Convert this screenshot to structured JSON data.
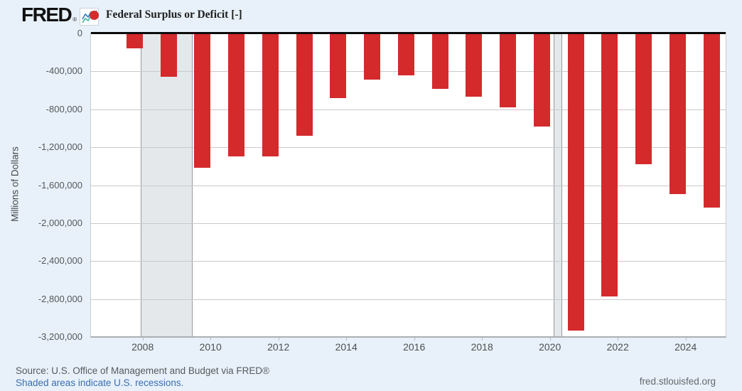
{
  "header": {
    "logo": "FRED",
    "registered": "®",
    "legend_label": "Federal Surplus or Deficit [-]"
  },
  "chart_data": {
    "type": "bar",
    "title": "Federal Surplus or Deficit [-]",
    "ylabel": "Millions of Dollars",
    "bar_color": "#d42a2c",
    "recession_color": "#e4e8ea",
    "grid": true,
    "legend_position": "top-left",
    "ylim": [
      -3200000,
      0
    ],
    "yticks": [
      {
        "value": 0,
        "label": "0"
      },
      {
        "value": -400000,
        "label": "-400,000"
      },
      {
        "value": -800000,
        "label": "-800,000"
      },
      {
        "value": -1200000,
        "label": "-1,200,000"
      },
      {
        "value": -1600000,
        "label": "-1,600,000"
      },
      {
        "value": -2000000,
        "label": "-2,000,000"
      },
      {
        "value": -2400000,
        "label": "-2,400,000"
      },
      {
        "value": -2800000,
        "label": "-2,800,000"
      },
      {
        "value": -3200000,
        "label": "-3,200,000"
      }
    ],
    "xticks": [
      {
        "value": 2008,
        "label": "2008"
      },
      {
        "value": 2010,
        "label": "2010"
      },
      {
        "value": 2012,
        "label": "2012"
      },
      {
        "value": 2014,
        "label": "2014"
      },
      {
        "value": 2016,
        "label": "2016"
      },
      {
        "value": 2018,
        "label": "2018"
      },
      {
        "value": 2020,
        "label": "2020"
      },
      {
        "value": 2022,
        "label": "2022"
      },
      {
        "value": 2024,
        "label": "2024"
      }
    ],
    "categories": [
      2007,
      2008,
      2009,
      2010,
      2011,
      2012,
      2013,
      2014,
      2015,
      2016,
      2017,
      2018,
      2019,
      2020,
      2021,
      2022,
      2023,
      2024
    ],
    "values": [
      -160701,
      -458553,
      -1412688,
      -1294373,
      -1299593,
      -1076573,
      -679775,
      -484793,
      -441960,
      -584651,
      -665446,
      -779137,
      -984388,
      -3131917,
      -2775535,
      -1375389,
      -1695245,
      -1832816
    ],
    "recessions": [
      {
        "start": 2007.92,
        "end": 2009.42
      },
      {
        "start": 2020.08,
        "end": 2020.29
      }
    ]
  },
  "footer": {
    "source": "Source: U.S. Office of Management and Budget via FRED®",
    "recession_note": "Shaded areas indicate U.S. recessions.",
    "recession_note_color": "#3a6eb2",
    "site": "fred.stlouisfed.org"
  }
}
